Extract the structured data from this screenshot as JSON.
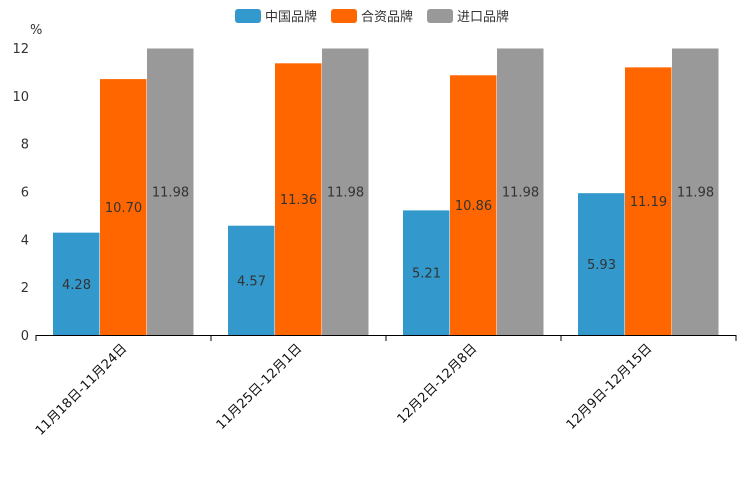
{
  "chart_data": {
    "type": "bar",
    "ylabel": "%",
    "ylim": [
      0,
      12
    ],
    "yticks": [
      0,
      2,
      4,
      6,
      8,
      10,
      12
    ],
    "categories": [
      "11月18日-11月24日",
      "11月25日-12月1日",
      "12月2日-12月8日",
      "12月9日-12月15日"
    ],
    "series": [
      {
        "name": "中国品牌",
        "color": "#3399cc",
        "values": [
          4.28,
          4.57,
          5.21,
          5.93
        ]
      },
      {
        "name": "合资品牌",
        "color": "#ff6600",
        "values": [
          10.7,
          11.36,
          10.86,
          11.19
        ]
      },
      {
        "name": "进口品牌",
        "color": "#999999",
        "values": [
          11.98,
          11.98,
          11.98,
          11.98
        ]
      }
    ],
    "legend_position": "top-center",
    "grid": false
  }
}
